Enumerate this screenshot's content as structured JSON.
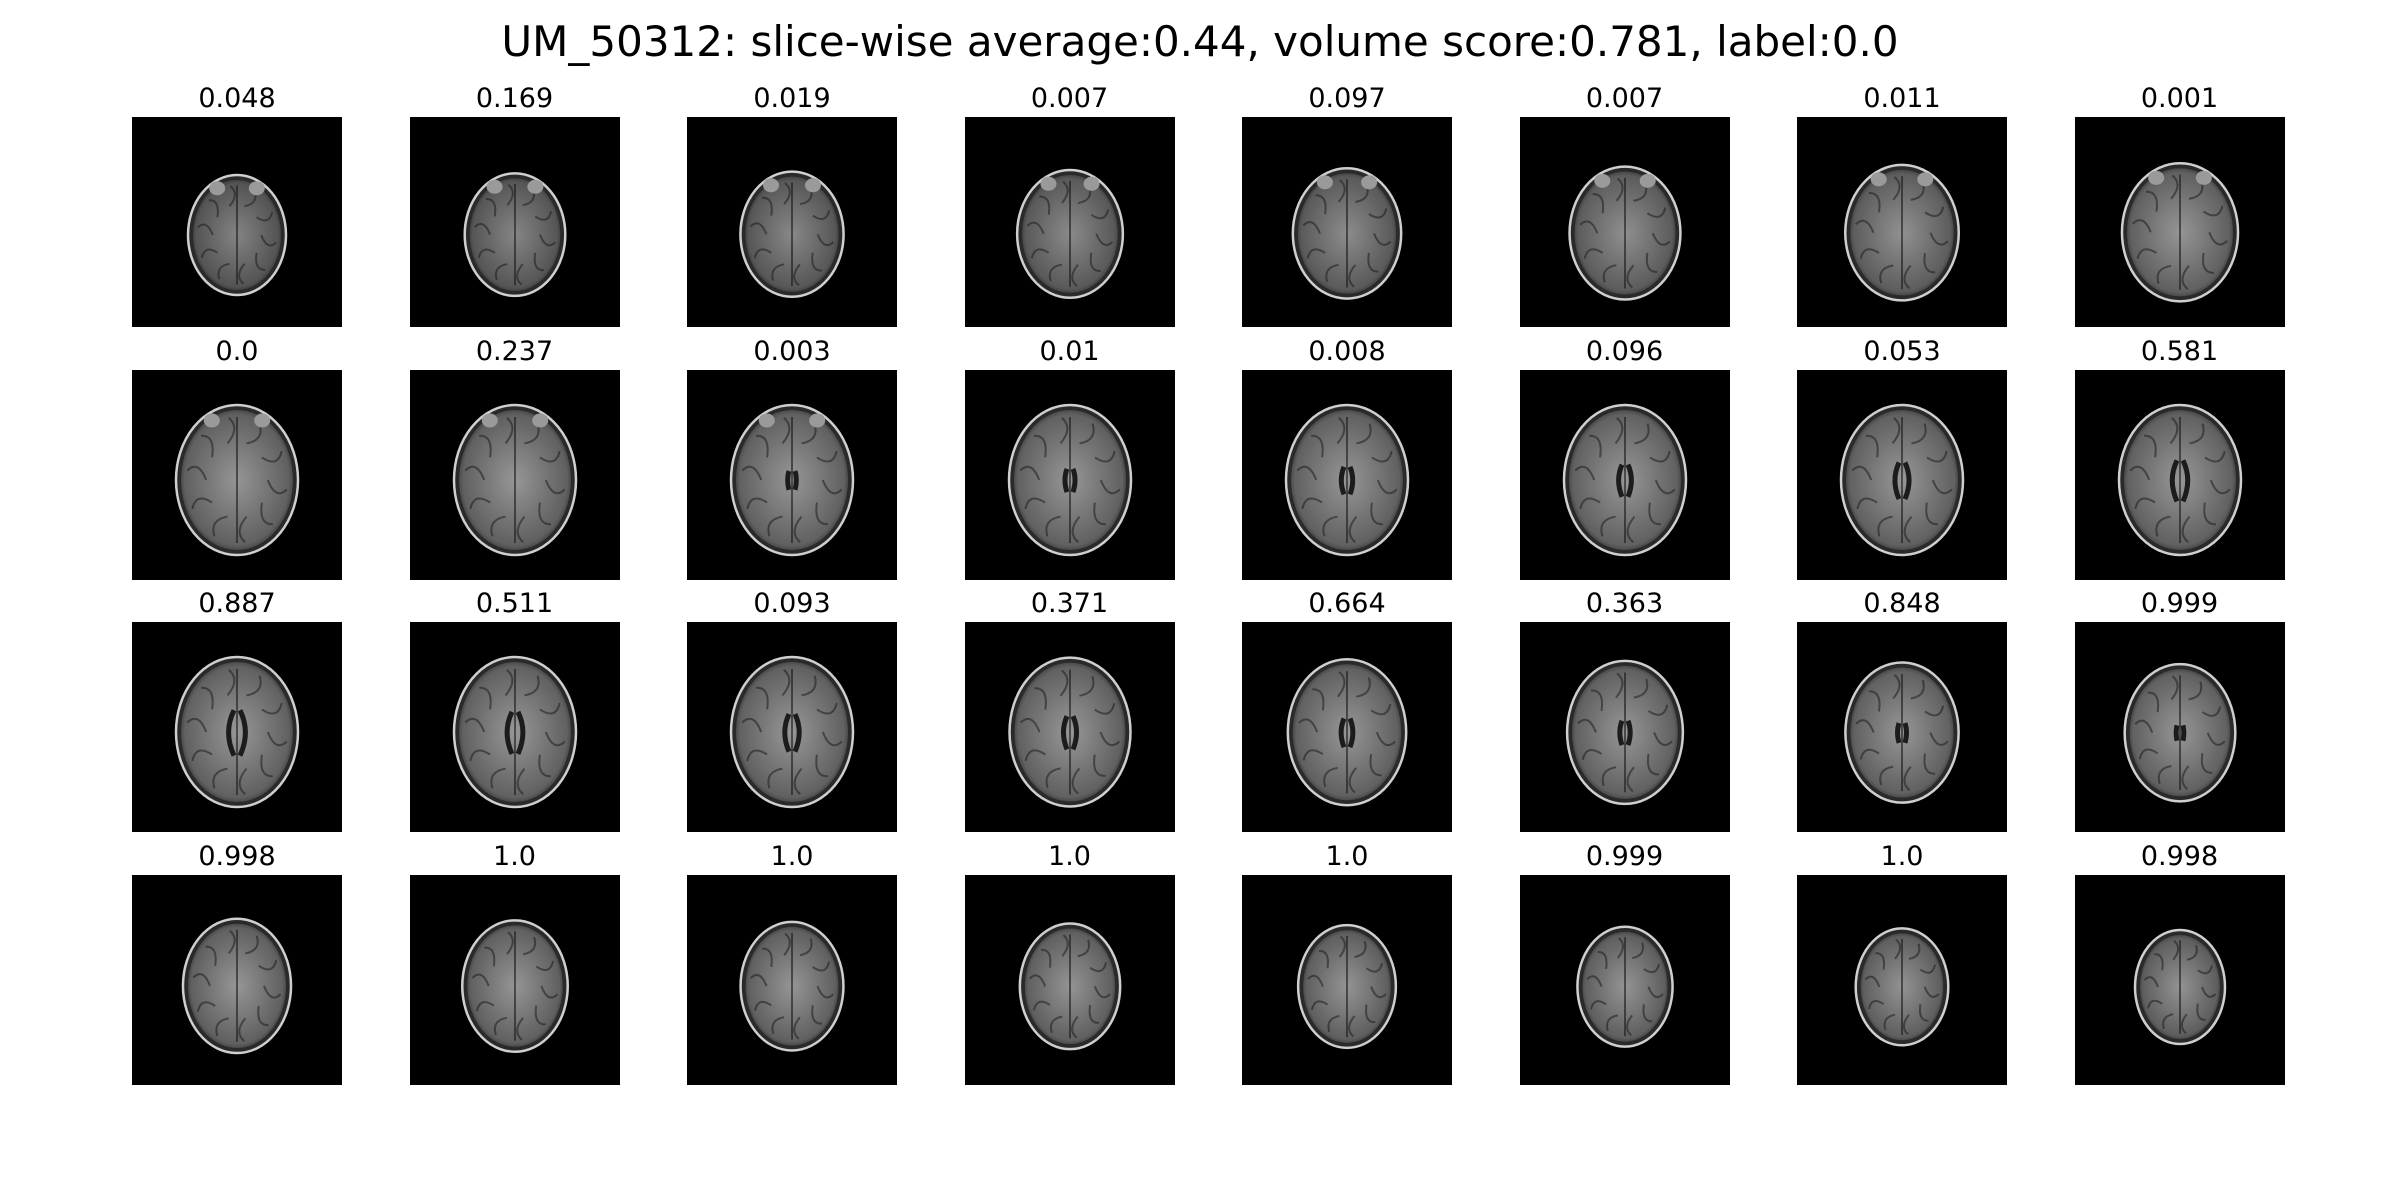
{
  "title": "UM_50312: slice-wise average:0.44, volume score:0.781, label:0.0",
  "slices": [
    {
      "score": "0.048",
      "level": 1
    },
    {
      "score": "0.169",
      "level": 2
    },
    {
      "score": "0.019",
      "level": 3
    },
    {
      "score": "0.007",
      "level": 4
    },
    {
      "score": "0.097",
      "level": 5
    },
    {
      "score": "0.007",
      "level": 6
    },
    {
      "score": "0.011",
      "level": 7
    },
    {
      "score": "0.001",
      "level": 8
    },
    {
      "score": "0.0",
      "level": 9
    },
    {
      "score": "0.237",
      "level": 10
    },
    {
      "score": "0.003",
      "level": 11
    },
    {
      "score": "0.01",
      "level": 12
    },
    {
      "score": "0.008",
      "level": 13
    },
    {
      "score": "0.096",
      "level": 14
    },
    {
      "score": "0.053",
      "level": 15
    },
    {
      "score": "0.581",
      "level": 16
    },
    {
      "score": "0.887",
      "level": 17
    },
    {
      "score": "0.511",
      "level": 18
    },
    {
      "score": "0.093",
      "level": 19
    },
    {
      "score": "0.371",
      "level": 20
    },
    {
      "score": "0.664",
      "level": 21
    },
    {
      "score": "0.363",
      "level": 22
    },
    {
      "score": "0.848",
      "level": 23
    },
    {
      "score": "0.999",
      "level": 24
    },
    {
      "score": "0.998",
      "level": 25
    },
    {
      "score": "1.0",
      "level": 26
    },
    {
      "score": "1.0",
      "level": 27
    },
    {
      "score": "1.0",
      "level": 28
    },
    {
      "score": "1.0",
      "level": 29
    },
    {
      "score": "0.999",
      "level": 30
    },
    {
      "score": "1.0",
      "level": 31
    },
    {
      "score": "0.998",
      "level": 32
    }
  ]
}
